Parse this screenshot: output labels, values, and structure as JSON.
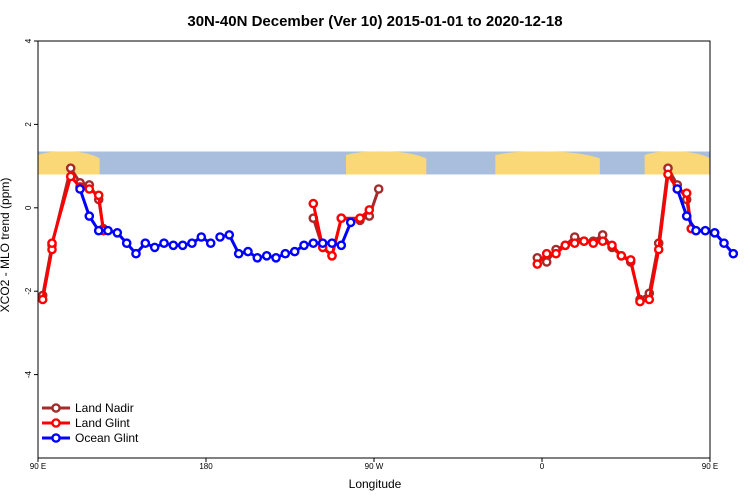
{
  "chart_data": {
    "type": "line",
    "title": "30N-40N December (Ver 10)   2015-01-01 to 2020-12-18",
    "xlabel": "Longitude",
    "ylabel": "XCO2 - MLO trend (ppm)",
    "xlim": [
      90,
      450
    ],
    "ylim": [
      -6,
      4
    ],
    "x_ticks": [
      {
        "value": 90,
        "label": "90 E"
      },
      {
        "value": 180,
        "label": "180"
      },
      {
        "value": 270,
        "label": "90 W"
      },
      {
        "value": 360,
        "label": "0"
      },
      {
        "value": 450,
        "label": "90 E"
      },
      {
        "value": 540,
        "label": "180"
      }
    ],
    "y_ticks": [
      {
        "value": 4,
        "label": "4"
      },
      {
        "value": 2,
        "label": "2"
      },
      {
        "value": 0,
        "label": "0"
      },
      {
        "value": -2,
        "label": "-2"
      },
      {
        "value": -4,
        "label": "-4"
      }
    ],
    "map_strip": {
      "ymin": 0.8,
      "ymax": 1.35,
      "ocean_color": "#a8bedc",
      "land_color": "#fad878"
    },
    "legend_position": "bottom-left",
    "series": [
      {
        "name": "Land Nadir",
        "color": "#a52a2a",
        "segments": [
          [
            [
              92.5,
              -2.1
            ],
            [
              97.5,
              -0.9
            ],
            [
              107.5,
              0.95
            ],
            [
              112.5,
              0.6
            ],
            [
              117.5,
              0.55
            ],
            [
              122.5,
              0.2
            ],
            [
              125,
              -0.5
            ]
          ],
          [
            [
              237.5,
              -0.25
            ],
            [
              242.5,
              -0.95
            ],
            [
              247.5,
              -1.15
            ],
            [
              252.5,
              -0.25
            ],
            [
              262.5,
              -0.3
            ],
            [
              267.5,
              -0.2
            ],
            [
              272.5,
              0.45
            ]
          ],
          [
            [
              357.5,
              -1.2
            ],
            [
              362.5,
              -1.3
            ],
            [
              367.5,
              -1.0
            ],
            [
              372.5,
              -0.9
            ],
            [
              377.5,
              -0.7
            ],
            [
              382.5,
              -0.8
            ],
            [
              387.5,
              -0.8
            ],
            [
              392.5,
              -0.65
            ],
            [
              397.5,
              -0.95
            ],
            [
              402.5,
              -1.15
            ],
            [
              407.5,
              -1.3
            ],
            [
              412.5,
              -2.2
            ],
            [
              417.5,
              -2.05
            ],
            [
              422.5,
              -0.85
            ],
            [
              427.5,
              0.95
            ],
            [
              432.5,
              0.55
            ],
            [
              437.5,
              0.2
            ],
            [
              440,
              -0.5
            ]
          ]
        ]
      },
      {
        "name": "Land Glint",
        "color": "#ff0000",
        "segments": [
          [
            [
              92.5,
              -2.2
            ],
            [
              97.5,
              -1.0
            ],
            [
              97.5,
              -0.85
            ],
            [
              107.5,
              0.75
            ],
            [
              112.5,
              0.5
            ],
            [
              117.5,
              0.45
            ],
            [
              122.5,
              0.3
            ],
            [
              125,
              -0.55
            ]
          ],
          [
            [
              237.5,
              0.1
            ],
            [
              242.5,
              -0.95
            ],
            [
              247.5,
              -1.15
            ],
            [
              252.5,
              -0.25
            ],
            [
              262.5,
              -0.25
            ],
            [
              267.5,
              -0.05
            ]
          ],
          [
            [
              357.5,
              -1.35
            ],
            [
              362.5,
              -1.1
            ],
            [
              367.5,
              -1.1
            ],
            [
              372.5,
              -0.9
            ],
            [
              377.5,
              -0.85
            ],
            [
              382.5,
              -0.8
            ],
            [
              387.5,
              -0.85
            ],
            [
              392.5,
              -0.8
            ],
            [
              397.5,
              -0.9
            ],
            [
              402.5,
              -1.15
            ],
            [
              407.5,
              -1.25
            ],
            [
              412.5,
              -2.25
            ],
            [
              417.5,
              -2.2
            ],
            [
              422.5,
              -1.0
            ],
            [
              427.5,
              0.8
            ],
            [
              432.5,
              0.45
            ],
            [
              437.5,
              0.35
            ],
            [
              440,
              -0.5
            ]
          ]
        ]
      },
      {
        "name": "Ocean Glint",
        "color": "#0000ff",
        "segments": [
          [
            [
              112.5,
              0.45
            ],
            [
              117.5,
              -0.2
            ],
            [
              122.5,
              -0.55
            ],
            [
              127.5,
              -0.55
            ],
            [
              132.5,
              -0.6
            ],
            [
              137.5,
              -0.85
            ],
            [
              142.5,
              -1.1
            ],
            [
              147.5,
              -0.85
            ],
            [
              152.5,
              -0.95
            ],
            [
              157.5,
              -0.85
            ],
            [
              162.5,
              -0.9
            ],
            [
              167.5,
              -0.9
            ],
            [
              172.5,
              -0.85
            ],
            [
              177.5,
              -0.7
            ],
            [
              182.5,
              -0.85
            ]
          ],
          [
            [
              187.5,
              -0.7
            ],
            [
              192.5,
              -0.65
            ],
            [
              197.5,
              -1.1
            ],
            [
              202.5,
              -1.05
            ],
            [
              207.5,
              -1.2
            ],
            [
              212.5,
              -1.15
            ],
            [
              217.5,
              -1.2
            ],
            [
              222.5,
              -1.1
            ],
            [
              227.5,
              -1.05
            ],
            [
              232.5,
              -0.9
            ],
            [
              237.5,
              -0.85
            ],
            [
              242.5,
              -0.85
            ],
            [
              247.5,
              -0.85
            ],
            [
              252.5,
              -0.9
            ],
            [
              257.5,
              -0.35
            ]
          ],
          [
            [
              432.5,
              0.45
            ],
            [
              437.5,
              -0.2
            ],
            [
              442.5,
              -0.55
            ],
            [
              447.5,
              -0.55
            ],
            [
              452.5,
              -0.6
            ],
            [
              457.5,
              -0.85
            ],
            [
              462.5,
              -1.1
            ]
          ]
        ]
      }
    ]
  }
}
